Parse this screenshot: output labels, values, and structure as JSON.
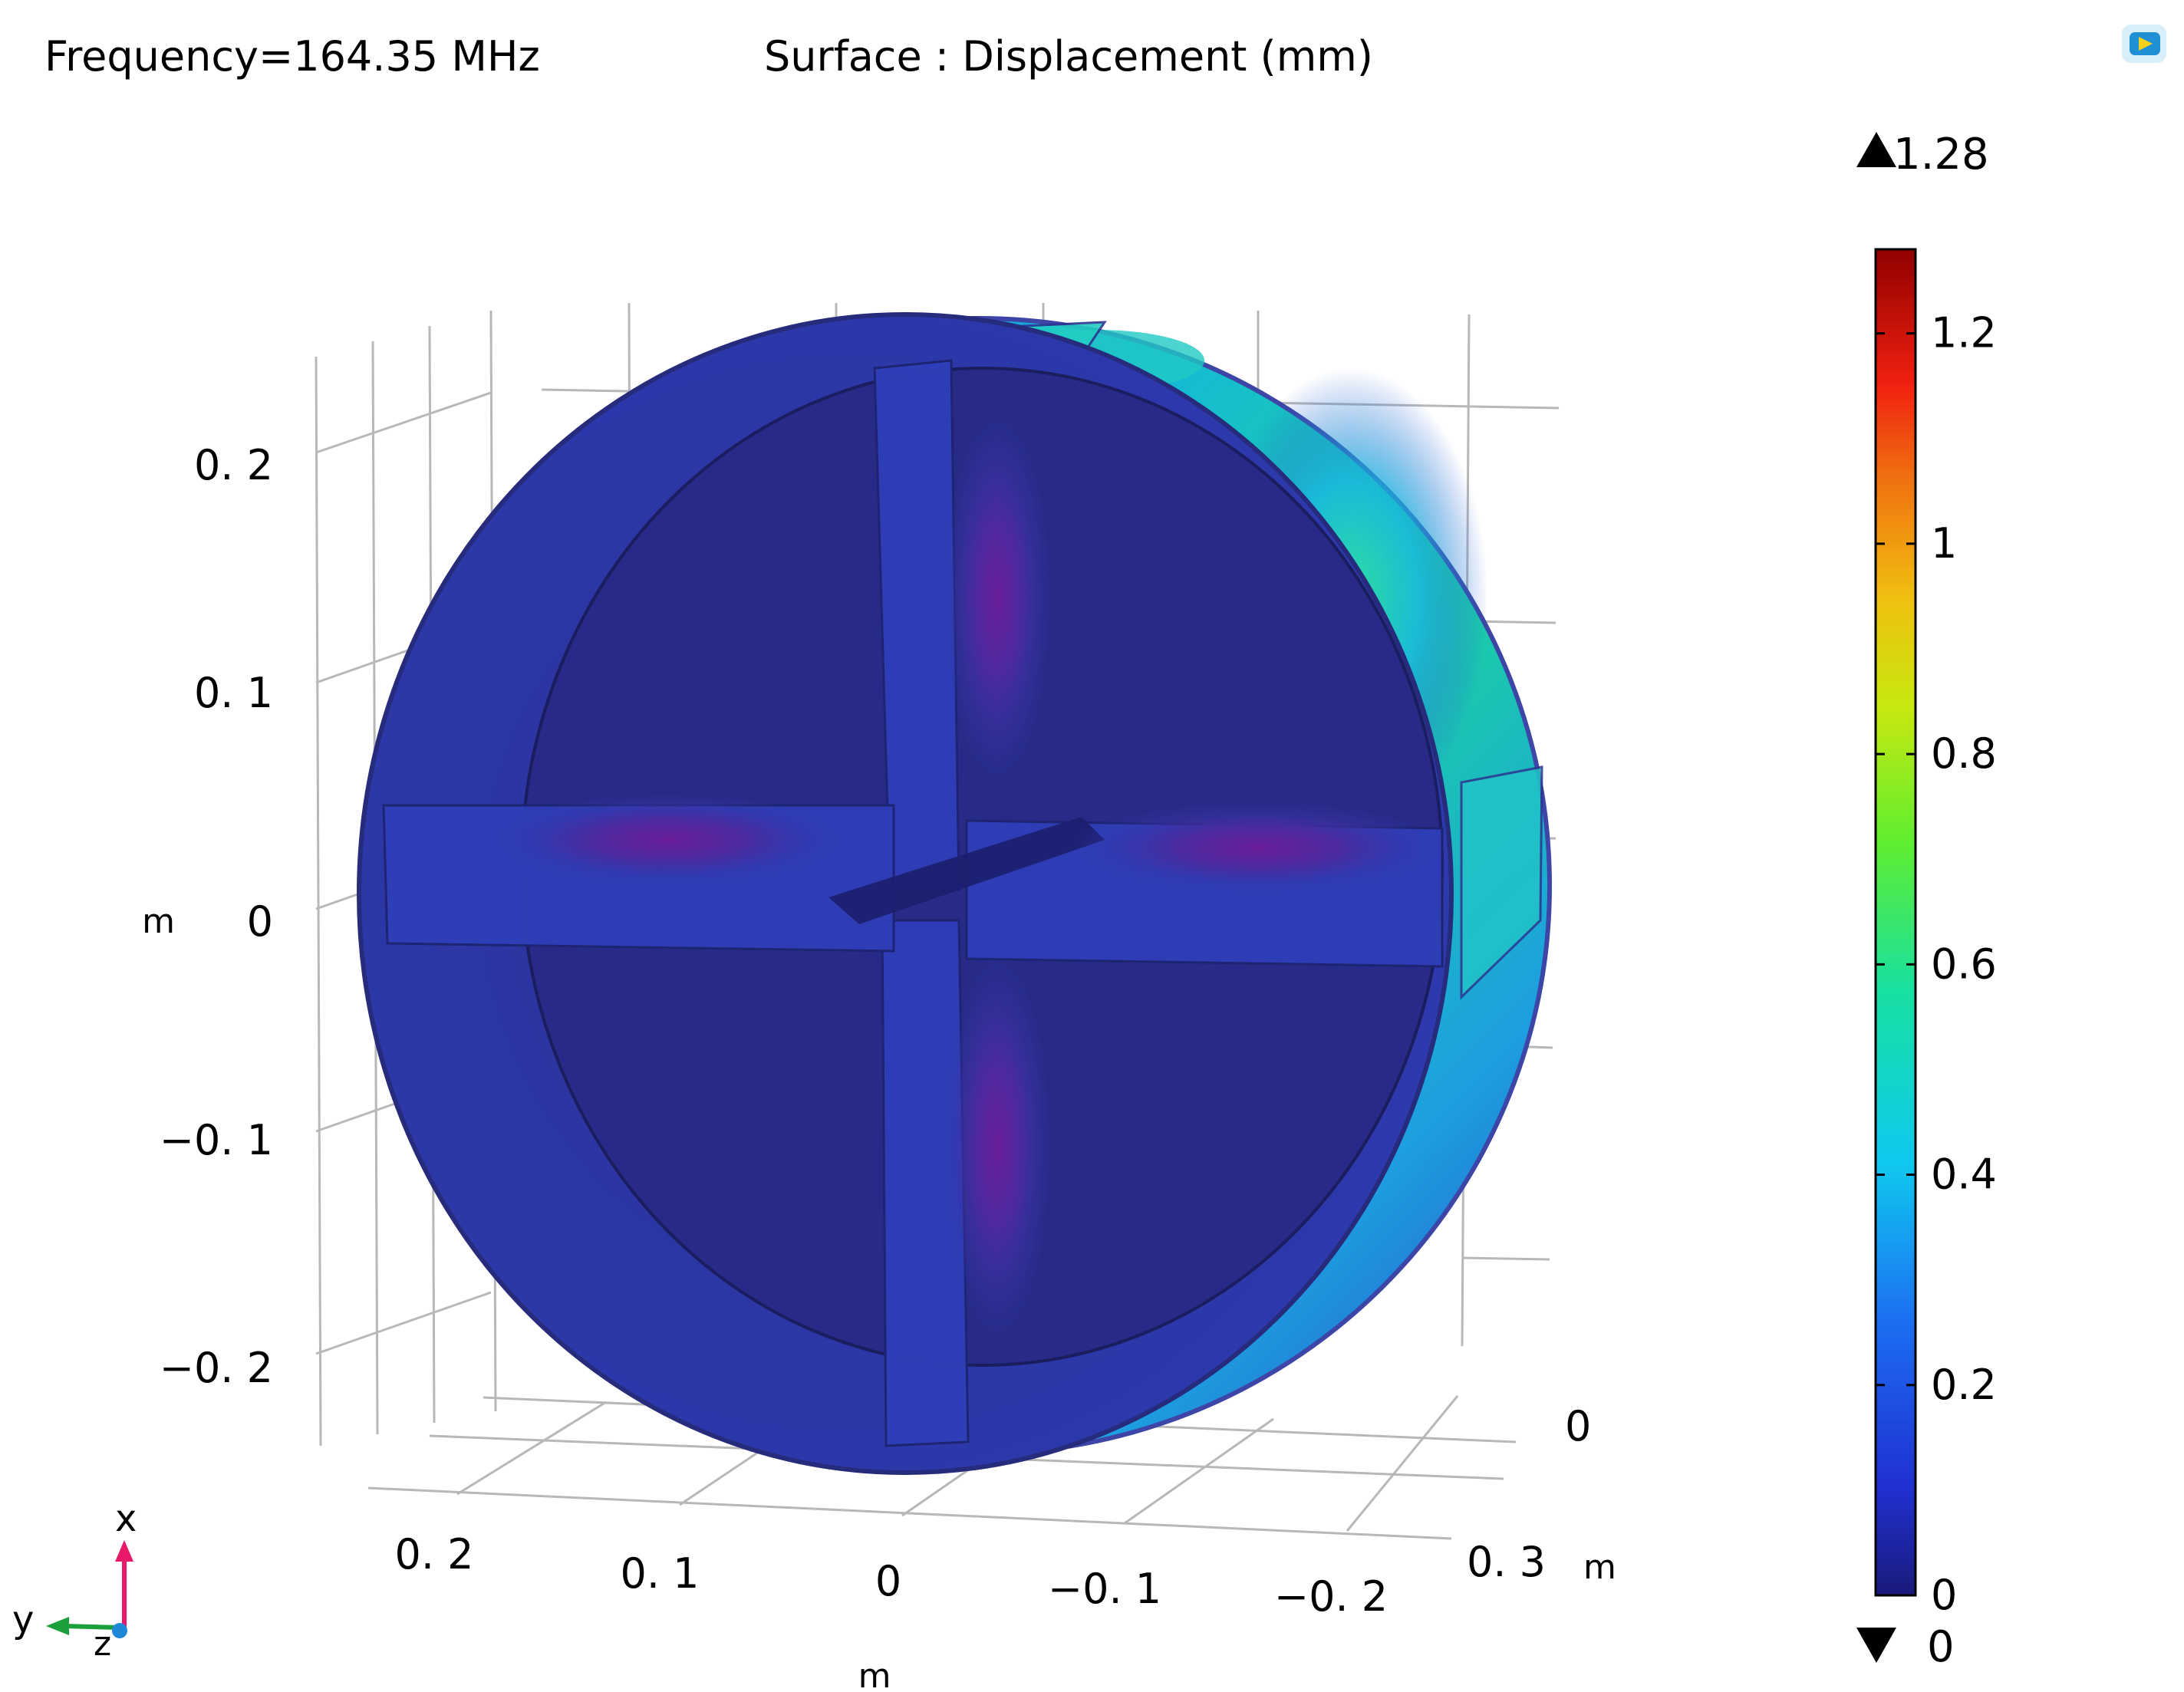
{
  "header": {
    "frequency_label": "Frequency=164.35 MHz",
    "plot_label": "Surface : Displacement (mm)"
  },
  "chart_data": {
    "type": "heatmap",
    "title": "Surface : Displacement (mm)",
    "subtitle": "Frequency=164.35 MHz",
    "quantity": "Displacement",
    "unit": "mm",
    "geometry": "3D cylindrical cavity with four vanes (RFQ cross-section)",
    "colorbar": {
      "min": 0,
      "max": 1.28,
      "ticks": [
        0,
        0.2,
        0.4,
        0.6,
        0.8,
        1,
        1.2
      ],
      "tick_labels": [
        "0",
        "0.2",
        "0.4",
        "0.6",
        "0.8",
        "1",
        "1.2"
      ],
      "max_label": "1.28",
      "min_label": "0",
      "colormap": "rainbow"
    },
    "axes": {
      "vertical": {
        "unit_label": "m",
        "tick_labels": [
          "0. 2",
          "0. 1",
          "0",
          "−0. 1",
          "−0. 2"
        ]
      },
      "horizontal": {
        "unit_label": "m",
        "tick_labels": [
          "0. 2",
          "0. 1",
          "0",
          "−0. 1",
          "−0. 2"
        ]
      },
      "depth": {
        "unit_label": "m",
        "tick_labels": [
          "0",
          "0. 3"
        ]
      }
    },
    "triad": {
      "x_label": "x",
      "y_label": "y",
      "z_label": "z"
    }
  },
  "colors": {
    "grid": "#b8b8b8",
    "cavity_dark": "#272b88",
    "cavity_mid": "#2f3bb0",
    "x_axis": "#e8186b",
    "y_axis": "#1a9f3a",
    "z_axis": "#1e88d8"
  },
  "icons": {
    "corner_logo": "comsol-logo-icon"
  }
}
